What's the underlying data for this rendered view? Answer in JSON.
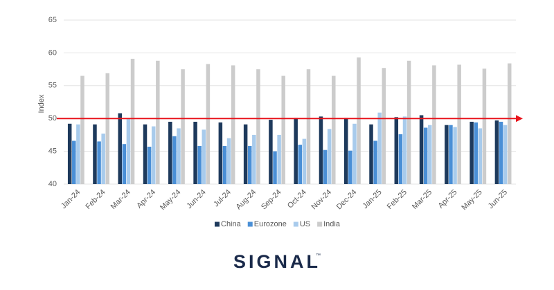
{
  "chart_data": {
    "type": "bar",
    "categories": [
      "Jan-24",
      "Feb-24",
      "Mar-24",
      "Apr-24",
      "May-24",
      "Jun-24",
      "Jul-24",
      "Aug-24",
      "Sep-24",
      "Oct-24",
      "Nov-24",
      "Dec-24",
      "Jan-25",
      "Feb-25",
      "Mar-25",
      "Apr-25",
      "May-25",
      "Jun-25"
    ],
    "series": [
      {
        "name": "China",
        "color": "#1e3a5c",
        "values": [
          49.2,
          49.1,
          50.8,
          49.1,
          49.5,
          49.5,
          49.4,
          49.1,
          49.8,
          50.1,
          50.3,
          50.1,
          49.1,
          50.2,
          50.5,
          49.0,
          49.5,
          49.7
        ]
      },
      {
        "name": "Eurozone",
        "color": "#4a8fd6",
        "values": [
          46.6,
          46.5,
          46.1,
          45.7,
          47.3,
          45.8,
          45.8,
          45.8,
          45.0,
          46.0,
          45.2,
          45.1,
          46.6,
          47.6,
          48.6,
          49.0,
          49.4,
          49.5
        ]
      },
      {
        "name": "US",
        "color": "#a8cbec",
        "values": [
          49.1,
          47.7,
          49.9,
          48.8,
          48.5,
          48.3,
          47.0,
          47.5,
          47.5,
          46.9,
          48.4,
          49.2,
          50.9,
          50.3,
          49.0,
          48.7,
          48.5,
          49.0
        ]
      },
      {
        "name": "India",
        "color": "#cccccc",
        "values": [
          56.5,
          56.9,
          59.1,
          58.8,
          57.5,
          58.3,
          58.1,
          57.5,
          56.5,
          57.5,
          56.5,
          59.3,
          57.7,
          58.8,
          58.1,
          58.2,
          57.6,
          58.4
        ]
      }
    ],
    "y_label": "Index",
    "ylim": [
      40,
      65
    ],
    "yticks": [
      40,
      45,
      50,
      55,
      60,
      65
    ],
    "grid": true,
    "reference_line": {
      "value": 50,
      "color": "#e8141c"
    },
    "legend": "bottom"
  },
  "logo": {
    "text": "SIGNAL",
    "mark": "™"
  }
}
